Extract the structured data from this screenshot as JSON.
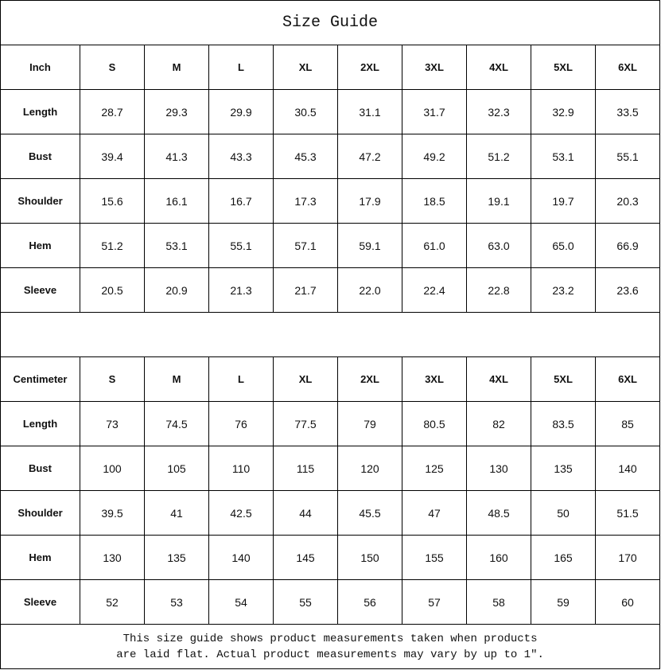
{
  "title": "Size Guide",
  "sizes": [
    "S",
    "M",
    "L",
    "XL",
    "2XL",
    "3XL",
    "4XL",
    "5XL",
    "6XL"
  ],
  "inch": {
    "header": "Inch",
    "rows": [
      {
        "label": "Length",
        "values": [
          "28.7",
          "29.3",
          "29.9",
          "30.5",
          "31.1",
          "31.7",
          "32.3",
          "32.9",
          "33.5"
        ]
      },
      {
        "label": "Bust",
        "values": [
          "39.4",
          "41.3",
          "43.3",
          "45.3",
          "47.2",
          "49.2",
          "51.2",
          "53.1",
          "55.1"
        ]
      },
      {
        "label": "Shoulder",
        "values": [
          "15.6",
          "16.1",
          "16.7",
          "17.3",
          "17.9",
          "18.5",
          "19.1",
          "19.7",
          "20.3"
        ]
      },
      {
        "label": "Hem",
        "values": [
          "51.2",
          "53.1",
          "55.1",
          "57.1",
          "59.1",
          "61.0",
          "63.0",
          "65.0",
          "66.9"
        ]
      },
      {
        "label": "Sleeve",
        "values": [
          "20.5",
          "20.9",
          "21.3",
          "21.7",
          "22.0",
          "22.4",
          "22.8",
          "23.2",
          "23.6"
        ]
      }
    ]
  },
  "cm": {
    "header": "Centimeter",
    "rows": [
      {
        "label": "Length",
        "values": [
          "73",
          "74.5",
          "76",
          "77.5",
          "79",
          "80.5",
          "82",
          "83.5",
          "85"
        ]
      },
      {
        "label": "Bust",
        "values": [
          "100",
          "105",
          "110",
          "115",
          "120",
          "125",
          "130",
          "135",
          "140"
        ]
      },
      {
        "label": "Shoulder",
        "values": [
          "39.5",
          "41",
          "42.5",
          "44",
          "45.5",
          "47",
          "48.5",
          "50",
          "51.5"
        ]
      },
      {
        "label": "Hem",
        "values": [
          "130",
          "135",
          "140",
          "145",
          "150",
          "155",
          "160",
          "165",
          "170"
        ]
      },
      {
        "label": "Sleeve",
        "values": [
          "52",
          "53",
          "54",
          "55",
          "56",
          "57",
          "58",
          "59",
          "60"
        ]
      }
    ]
  },
  "footer": {
    "lines": [
      "This size guide shows product measurements taken when products",
      "are laid flat. Actual product measurements may vary by up to 1″."
    ]
  }
}
